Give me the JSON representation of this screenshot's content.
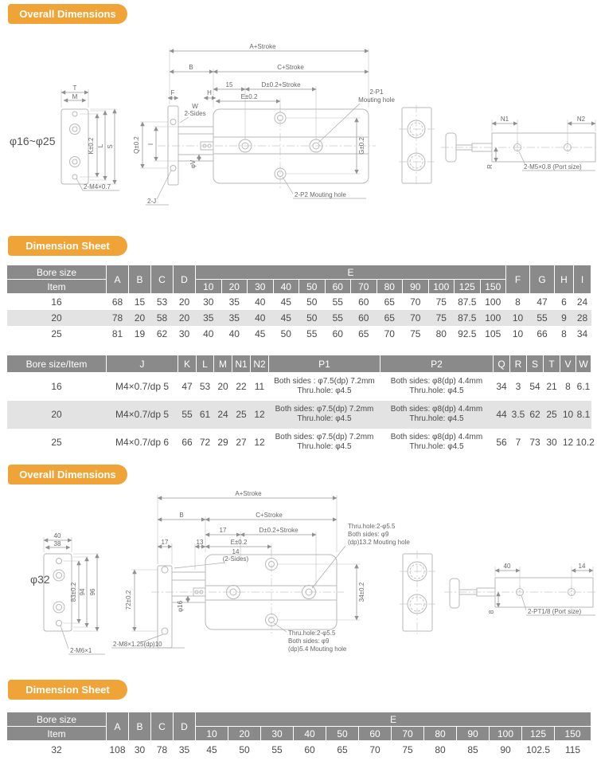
{
  "sections": {
    "overall1_title": "Overall Dimensions",
    "sheet1_title": "Dimension Sheet",
    "overall2_title": "Overall Dimensions",
    "sheet2_title": "Dimension Sheet"
  },
  "drawing1": {
    "product_label": "φ16~φ25",
    "end_view": {
      "dim_t": "T",
      "dim_m": "M",
      "dim_k": "K±0.2",
      "dim_l": "L",
      "dim_s": "S",
      "thread_label": "2-M4×0.7"
    },
    "main_view": {
      "dim_a": "A+Stroke",
      "dim_b": "B",
      "dim_c": "C+Stroke",
      "dim_15": "15",
      "dim_d": "D±0.2+Stroke",
      "dim_e": "E±0.2",
      "dim_f": "F",
      "dim_h": "H",
      "dim_w1": "W",
      "dim_w2": "2-Sides",
      "dim_q": "Q±0.2",
      "dim_i": "I",
      "dim_v": "φV",
      "dim_j": "2-J",
      "dim_g": "G±0.2",
      "p1_label1": "2-P1",
      "p1_label2": "Mouting hole",
      "p2_label": "2-P2 Mouting hole"
    },
    "side_view": {
      "dim_n1": "N1",
      "dim_n2": "N2",
      "dim_r": "R",
      "port_label": "2-M5×0.8 (Port size)"
    }
  },
  "table1": {
    "header": {
      "bore_size": "Bore size",
      "item": "Item",
      "cols_left": [
        "A",
        "B",
        "C",
        "D"
      ],
      "e_label": "E",
      "e_cols": [
        "10",
        "20",
        "30",
        "40",
        "50",
        "60",
        "70",
        "80",
        "90",
        "100",
        "125",
        "150"
      ],
      "cols_right": [
        "F",
        "G",
        "H",
        "I"
      ]
    },
    "rows": [
      {
        "item": "16",
        "a": "68",
        "b": "15",
        "c": "53",
        "d": "20",
        "e": [
          "30",
          "35",
          "40",
          "45",
          "50",
          "55",
          "60",
          "65",
          "70",
          "75",
          "87.5",
          "100"
        ],
        "f": "8",
        "g": "47",
        "h": "6",
        "i": "24"
      },
      {
        "item": "20",
        "a": "78",
        "b": "20",
        "c": "58",
        "d": "20",
        "e": [
          "35",
          "35",
          "40",
          "45",
          "50",
          "55",
          "60",
          "65",
          "70",
          "75",
          "87.5",
          "100"
        ],
        "f": "10",
        "g": "55",
        "h": "9",
        "i": "28"
      },
      {
        "item": "25",
        "a": "81",
        "b": "19",
        "c": "62",
        "d": "30",
        "e": [
          "40",
          "40",
          "45",
          "50",
          "55",
          "60",
          "65",
          "70",
          "75",
          "80",
          "92.5",
          "105"
        ],
        "f": "10",
        "g": "66",
        "h": "8",
        "i": "34"
      }
    ]
  },
  "table2": {
    "header": [
      "Bore size/Item",
      "J",
      "K",
      "L",
      "M",
      "N1",
      "N2",
      "P1",
      "P2",
      "Q",
      "R",
      "S",
      "T",
      "V",
      "W"
    ],
    "rows": [
      {
        "item": "16",
        "j": "M4×0.7/dp 5",
        "k": "47",
        "l": "53",
        "m": "20",
        "n1": "22",
        "n2": "11",
        "p1a": "Both sides : φ7.5(dp) 7.2mm",
        "p1b": "Thru.hole: φ4.5",
        "p2a": "Both sides: φ8(dp) 4.4mm",
        "p2b": "Thru.hole: φ4.5",
        "q": "34",
        "r": "3",
        "s": "54",
        "t": "21",
        "v": "8",
        "w": "6.1"
      },
      {
        "item": "20",
        "j": "M4×0.7/dp 5",
        "k": "55",
        "l": "61",
        "m": "24",
        "n1": "25",
        "n2": "12",
        "p1a": "Both sides: φ7.5(dp) 7.2mm",
        "p1b": "Thru.hole: φ4.5",
        "p2a": "Both sides: φ8(dp) 4.4mm",
        "p2b": "Thru.hole: φ4.5",
        "q": "44",
        "r": "3.5",
        "s": "62",
        "t": "25",
        "v": "10",
        "w": "8.1"
      },
      {
        "item": "25",
        "j": "M4×0.7/dp 6",
        "k": "66",
        "l": "72",
        "m": "29",
        "n1": "27",
        "n2": "12",
        "p1a": "Both sides: φ7.5(dp) 7.2mm",
        "p1b": "Thru.hole: φ4.5",
        "p2a": "Both sides: φ8(dp) 4.4mm",
        "p2b": "Thru.hole: φ4.5",
        "q": "56",
        "r": "7",
        "s": "73",
        "t": "30",
        "v": "12",
        "w": "10.2"
      }
    ]
  },
  "drawing2": {
    "product_label": "φ32",
    "end_view": {
      "dim_40": "40",
      "dim_38": "38",
      "dim_83": "83±0.2",
      "dim_94": "94",
      "dim_96": "96",
      "thread_label": "2-M6×1"
    },
    "main_view": {
      "dim_a": "A+Stroke",
      "dim_b": "B",
      "dim_c": "C+Stroke",
      "dim_17a": "17",
      "dim_d": "D±0.2+Stroke",
      "dim_13": "13",
      "dim_e": "E±0.2",
      "dim_17b": "17",
      "dim_14a": "14",
      "dim_14b": "(2-Sides)",
      "dim_72": "72±0.2",
      "dim_phi16": "φ16",
      "dim_34": "34±0.2",
      "thread_label": "2-M8×1.25(dp)10",
      "note_top1": "Thru.hole:2-φ5.5",
      "note_top2": "Both sides: φ9",
      "note_top3": "(dp)13.2 Mouting hole",
      "note_bot1": "Thru.hole:2-φ5.5",
      "note_bot2": "Both sides: φ9",
      "note_bot3": "(dp)5.4 Mouting hole"
    },
    "side_view": {
      "dim_40": "40",
      "dim_14": "14",
      "dim_8": "8",
      "port_label": "2-PT1/8 (Port size)"
    }
  },
  "table3": {
    "header": {
      "bore_size": "Bore size",
      "item": "Item",
      "cols_left": [
        "A",
        "B",
        "C",
        "D"
      ],
      "e_label": "E",
      "e_cols": [
        "10",
        "20",
        "30",
        "40",
        "50",
        "60",
        "70",
        "80",
        "90",
        "100",
        "125",
        "150"
      ]
    },
    "rows": [
      {
        "item": "32",
        "a": "108",
        "b": "30",
        "c": "78",
        "d": "35",
        "e": [
          "45",
          "50",
          "55",
          "60",
          "65",
          "70",
          "75",
          "80",
          "85",
          "90",
          "102.5",
          "115"
        ]
      }
    ]
  }
}
